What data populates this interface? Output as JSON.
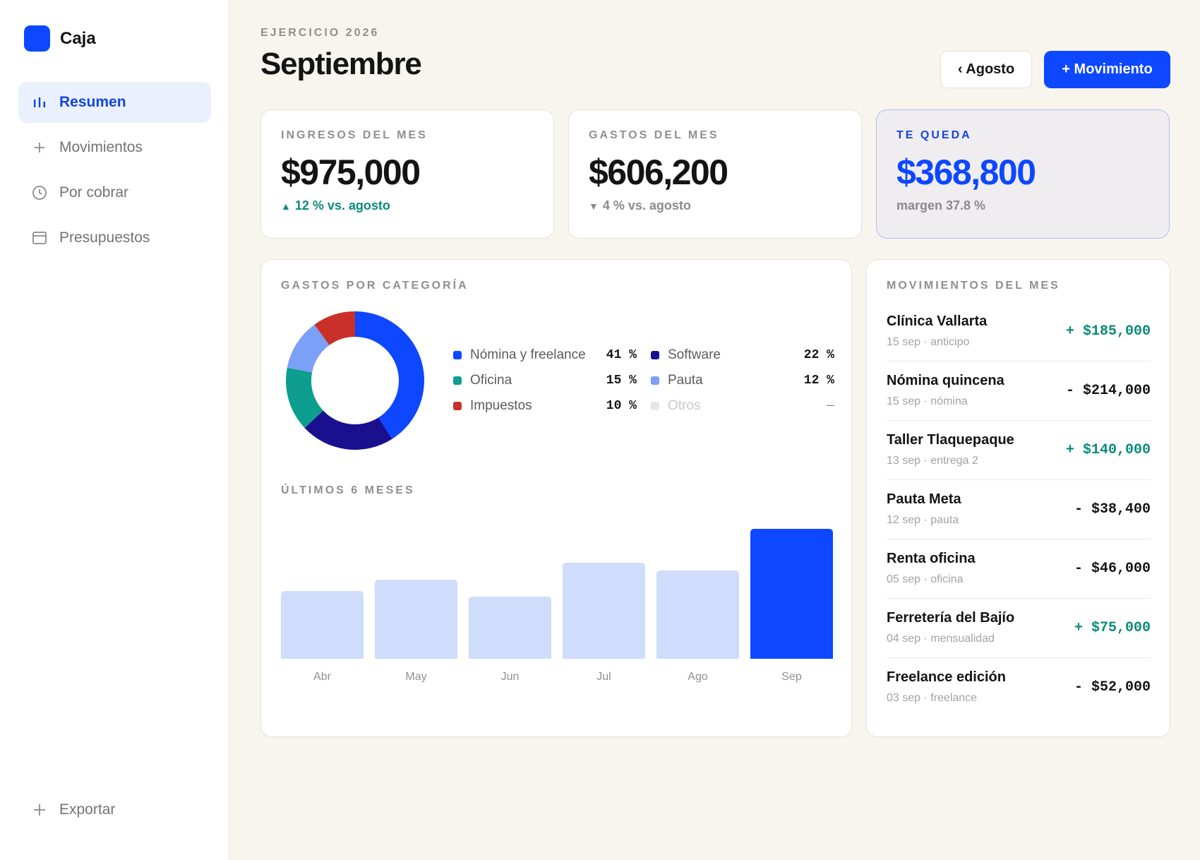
{
  "brand": {
    "name": "Caja"
  },
  "nav": [
    {
      "label": "Resumen",
      "icon": "bar-chart-icon",
      "active": true
    },
    {
      "label": "Movimientos",
      "icon": "plus-icon",
      "active": false
    },
    {
      "label": "Por cobrar",
      "icon": "clock-icon",
      "active": false
    },
    {
      "label": "Presupuestos",
      "icon": "calendar-icon",
      "active": false
    }
  ],
  "export_label": "Exportar",
  "header": {
    "eyebrow": "EJERCICIO 2026",
    "title": "Septiembre",
    "prev_label": "‹ Agosto",
    "add_label": "+ Movimiento"
  },
  "kpis": {
    "income": {
      "label": "INGRESOS DEL MES",
      "value": "$975,000",
      "note": "12 % vs. agosto",
      "trend": "▲"
    },
    "expenses": {
      "label": "GASTOS DEL MES",
      "value": "$606,200",
      "note": "4 % vs. agosto",
      "trend": "▼"
    },
    "remaining": {
      "label": "TE QUEDA",
      "value": "$368,800",
      "note": "margen 37.8 %"
    }
  },
  "colors": {
    "accent": "#0d47ff",
    "positive": "#0b8a7a",
    "bar_muted": "#d0dcfc"
  },
  "categories": {
    "label": "GASTOS POR CATEGORÍA",
    "items": [
      {
        "name": "Nómina y freelance",
        "pct": 41,
        "pct_label": "41 %",
        "color": "#0d47ff"
      },
      {
        "name": "Software",
        "pct": 22,
        "pct_label": "22 %",
        "color": "#1a0f8f"
      },
      {
        "name": "Oficina",
        "pct": 15,
        "pct_label": "15 %",
        "color": "#0e9e90"
      },
      {
        "name": "Pauta",
        "pct": 12,
        "pct_label": "12 %",
        "color": "#7aa0f7"
      },
      {
        "name": "Impuestos",
        "pct": 10,
        "pct_label": "10 %",
        "color": "#c9302a"
      },
      {
        "name": "Otros",
        "pct": 0,
        "pct_label": "—",
        "color": "#e6e6e6"
      }
    ]
  },
  "history": {
    "label": "ÚLTIMOS 6 MESES"
  },
  "chart_data": {
    "type": "bar",
    "categories": [
      "Abr",
      "May",
      "Jun",
      "Jul",
      "Ago",
      "Sep"
    ],
    "values": [
      0.52,
      0.61,
      0.48,
      0.74,
      0.68,
      1.0
    ],
    "highlight_index": 5
  },
  "movements": {
    "label": "MOVIMIENTOS DEL MES",
    "items": [
      {
        "name": "Clínica Vallarta",
        "meta": "15 sep · anticipo",
        "amount": "+ $185,000",
        "positive": true
      },
      {
        "name": "Nómina quincena",
        "meta": "15 sep · nómina",
        "amount": "- $214,000",
        "positive": false
      },
      {
        "name": "Taller Tlaquepaque",
        "meta": "13 sep · entrega 2",
        "amount": "+ $140,000",
        "positive": true
      },
      {
        "name": "Pauta Meta",
        "meta": "12 sep · pauta",
        "amount": "- $38,400",
        "positive": false
      },
      {
        "name": "Renta oficina",
        "meta": "05 sep · oficina",
        "amount": "- $46,000",
        "positive": false
      },
      {
        "name": "Ferretería del Bajío",
        "meta": "04 sep · mensualidad",
        "amount": "+ $75,000",
        "positive": true
      },
      {
        "name": "Freelance edición",
        "meta": "03 sep · freelance",
        "amount": "- $52,000",
        "positive": false
      }
    ]
  }
}
